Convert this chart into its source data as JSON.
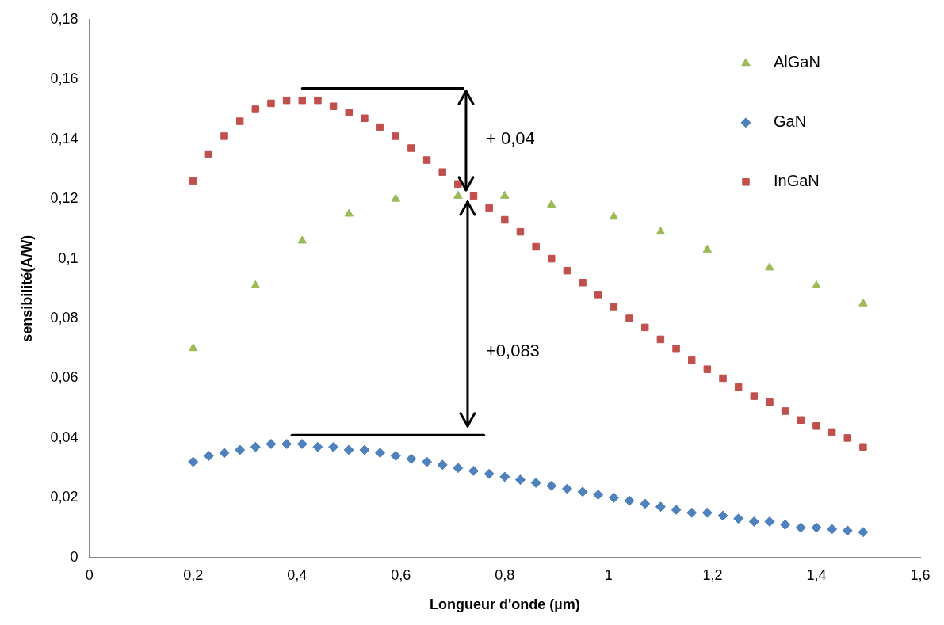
{
  "chart_data": {
    "type": "scatter",
    "xlabel": "Longueur d'onde (µm)",
    "ylabel": "sensibilité(A/W)",
    "xlim": [
      0,
      1.6
    ],
    "ylim": [
      0,
      0.18
    ],
    "xticks": [
      0,
      {
        "value": 0.2,
        "label": "0,2"
      },
      {
        "value": 0.4,
        "label": "0,4"
      },
      {
        "value": 0.6,
        "label": "0,6"
      },
      {
        "value": 0.8,
        "label": "0,8"
      },
      1,
      {
        "value": 1.2,
        "label": "1,2"
      },
      {
        "value": 1.4,
        "label": "1,4"
      },
      {
        "value": 1.6,
        "label": "1,6"
      }
    ],
    "yticks": [
      0,
      {
        "value": 0.02,
        "label": "0,02"
      },
      {
        "value": 0.04,
        "label": "0,04"
      },
      {
        "value": 0.06,
        "label": "0,06"
      },
      {
        "value": 0.08,
        "label": "0,08"
      },
      {
        "value": 0.1,
        "label": "0,1"
      },
      {
        "value": 0.12,
        "label": "0,12"
      },
      {
        "value": 0.14,
        "label": "0,14"
      },
      {
        "value": 0.16,
        "label": "0,16"
      },
      {
        "value": 0.18,
        "label": "0,18"
      }
    ],
    "grid": false,
    "legend": "top right",
    "annotations": [
      "+ 0,04",
      "+0,083"
    ],
    "series": [
      {
        "name": "AlGaN",
        "color": "#9bbb59",
        "marker": "triangle",
        "x": [
          0.2,
          0.32,
          0.41,
          0.5,
          0.59,
          0.71,
          0.8,
          0.89,
          1.01,
          1.1,
          1.19,
          1.31,
          1.4,
          1.49
        ],
        "values": [
          0.07,
          0.091,
          0.106,
          0.115,
          0.12,
          0.121,
          0.121,
          0.118,
          0.114,
          0.109,
          0.103,
          0.097,
          0.091,
          0.085
        ]
      },
      {
        "name": "GaN",
        "color": "#4f81bd",
        "marker": "diamond",
        "x": [
          0.2,
          0.23,
          0.26,
          0.29,
          0.32,
          0.35,
          0.38,
          0.41,
          0.44,
          0.47,
          0.5,
          0.53,
          0.56,
          0.59,
          0.62,
          0.65,
          0.68,
          0.71,
          0.74,
          0.77,
          0.8,
          0.83,
          0.86,
          0.89,
          0.92,
          0.95,
          0.98,
          1.01,
          1.04,
          1.07,
          1.1,
          1.13,
          1.16,
          1.19,
          1.22,
          1.25,
          1.28,
          1.31,
          1.34,
          1.37,
          1.4,
          1.43,
          1.46,
          1.49
        ],
        "values": [
          0.032,
          0.034,
          0.035,
          0.036,
          0.037,
          0.038,
          0.038,
          0.038,
          0.037,
          0.037,
          0.036,
          0.036,
          0.035,
          0.034,
          0.033,
          0.032,
          0.031,
          0.03,
          0.029,
          0.028,
          0.027,
          0.026,
          0.025,
          0.024,
          0.023,
          0.022,
          0.021,
          0.02,
          0.019,
          0.018,
          0.017,
          0.016,
          0.015,
          0.015,
          0.014,
          0.013,
          0.012,
          0.012,
          0.011,
          0.01,
          0.01,
          0.0095,
          0.009,
          0.0085
        ]
      },
      {
        "name": "InGaN",
        "color": "#c0504d",
        "marker": "square",
        "x": [
          0.2,
          0.23,
          0.26,
          0.29,
          0.32,
          0.35,
          0.38,
          0.41,
          0.44,
          0.47,
          0.5,
          0.53,
          0.56,
          0.59,
          0.62,
          0.65,
          0.68,
          0.71,
          0.74,
          0.77,
          0.8,
          0.83,
          0.86,
          0.89,
          0.92,
          0.95,
          0.98,
          1.01,
          1.04,
          1.07,
          1.1,
          1.13,
          1.16,
          1.19,
          1.22,
          1.25,
          1.28,
          1.31,
          1.34,
          1.37,
          1.4,
          1.43,
          1.46,
          1.49
        ],
        "values": [
          0.126,
          0.135,
          0.141,
          0.146,
          0.15,
          0.152,
          0.153,
          0.153,
          0.153,
          0.151,
          0.149,
          0.147,
          0.144,
          0.141,
          0.137,
          0.133,
          0.129,
          0.125,
          0.121,
          0.117,
          0.113,
          0.109,
          0.104,
          0.1,
          0.096,
          0.092,
          0.088,
          0.084,
          0.08,
          0.077,
          0.073,
          0.07,
          0.066,
          0.063,
          0.06,
          0.057,
          0.054,
          0.052,
          0.049,
          0.046,
          0.044,
          0.042,
          0.04,
          0.037
        ]
      }
    ]
  }
}
